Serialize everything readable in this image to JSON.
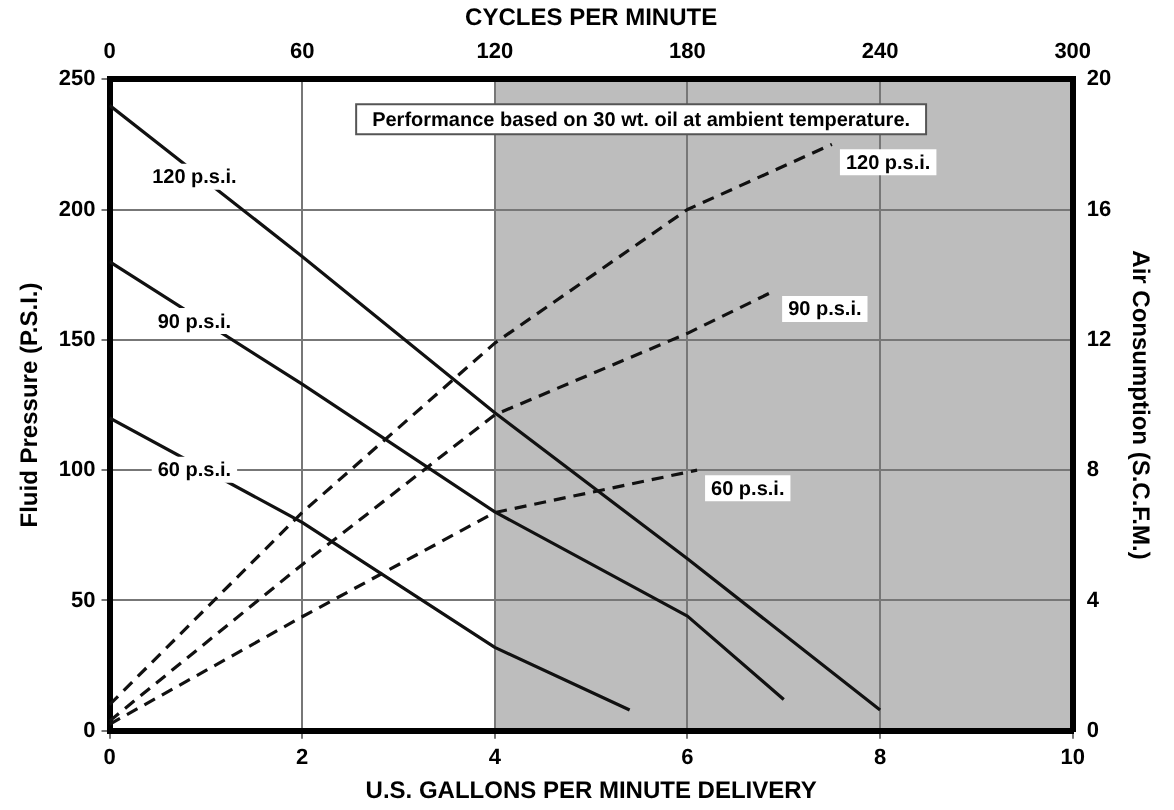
{
  "chart_data": {
    "type": "line",
    "xlabel": "U.S. GALLONS PER MINUTE DELIVERY",
    "ylabel": "Fluid Pressure (P.S.I.)",
    "y2label": "Air Consumption (S.C.F.M.)",
    "x2label": "CYCLES PER MINUTE",
    "xlim": [
      0,
      10
    ],
    "xticks": [
      0,
      2,
      4,
      6,
      8,
      10
    ],
    "x2lim": [
      0,
      300
    ],
    "x2ticks": [
      0,
      60,
      120,
      180,
      240,
      300
    ],
    "ylim": [
      0,
      250
    ],
    "yticks": [
      0,
      50,
      100,
      150,
      200,
      250
    ],
    "y2lim": [
      0,
      20
    ],
    "y2ticks": [
      0,
      4,
      8,
      12,
      16,
      20
    ],
    "grid": true,
    "marker": "none",
    "bands": [
      {
        "axis": "x",
        "from": 4,
        "to": 10,
        "color": "#bdbdbd"
      }
    ],
    "annotations": [
      "Performance based on 30 wt. oil at ambient temperature."
    ],
    "series": [
      {
        "name": "120 p.s.i.",
        "color": "#111111",
        "line_style": "solid",
        "x": [
          0,
          2,
          4,
          6,
          8
        ],
        "values": [
          240,
          182,
          122,
          66,
          8
        ]
      },
      {
        "name": "90 p.s.i.",
        "color": "#111111",
        "line_style": "solid",
        "x": [
          0,
          2,
          4,
          6,
          7
        ],
        "values": [
          180,
          133,
          84,
          44,
          12
        ]
      },
      {
        "name": "60 p.s.i.",
        "color": "#111111",
        "line_style": "solid",
        "x": [
          0,
          2,
          4,
          5.4
        ],
        "values": [
          120,
          80,
          32,
          8
        ]
      },
      {
        "name": "120 p.s.i.",
        "color": "#111111",
        "line_style": "dashed",
        "axis": "y2",
        "x": [
          0,
          2,
          4,
          6,
          7.5
        ],
        "values": [
          0.8,
          6.7,
          11.9,
          16,
          18
        ]
      },
      {
        "name": "90 p.s.i.",
        "color": "#111111",
        "line_style": "dashed",
        "axis": "y2",
        "x": [
          0,
          2,
          4,
          6,
          6.9
        ],
        "values": [
          0.3,
          5.1,
          9.7,
          12.2,
          13.5
        ]
      },
      {
        "name": "60 p.s.i.",
        "color": "#111111",
        "line_style": "dashed",
        "axis": "y2",
        "x": [
          0,
          2,
          4,
          6.1
        ],
        "values": [
          0.2,
          3.5,
          6.7,
          8
        ]
      }
    ]
  }
}
